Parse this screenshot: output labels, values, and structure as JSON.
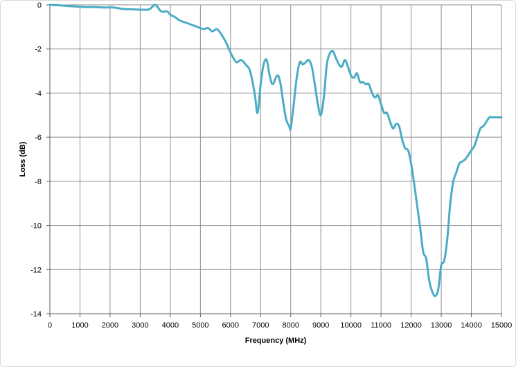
{
  "chart_data": {
    "type": "line",
    "title": "",
    "xlabel": "Frequency (MHz)",
    "ylabel": "Loss (dB)",
    "xlim": [
      0,
      15000
    ],
    "ylim": [
      -14,
      0
    ],
    "xticks": [
      0,
      1000,
      2000,
      3000,
      4000,
      5000,
      6000,
      7000,
      8000,
      9000,
      10000,
      11000,
      12000,
      13000,
      14000,
      15000
    ],
    "yticks": [
      0,
      -2,
      -4,
      -6,
      -8,
      -10,
      -12,
      -14
    ],
    "grid": true,
    "legend": "none",
    "colors": {
      "line": "#4bacc6",
      "grid": "#8c8c8c",
      "axis": "#595959"
    },
    "series": [
      {
        "x": [
          0,
          300,
          600,
          900,
          1200,
          1500,
          1800,
          2100,
          2400,
          2700,
          3000,
          3300,
          3500,
          3700,
          3900,
          4000,
          4150,
          4300,
          4500,
          4700,
          4900,
          5100,
          5250,
          5400,
          5550,
          5700,
          5850,
          5950,
          6050,
          6200,
          6350,
          6500,
          6650,
          6800,
          6900,
          7000,
          7100,
          7200,
          7300,
          7400,
          7550,
          7650,
          7750,
          7850,
          7950,
          8000,
          8100,
          8200,
          8300,
          8400,
          8500,
          8600,
          8700,
          8800,
          8900,
          9000,
          9100,
          9200,
          9300,
          9400,
          9500,
          9600,
          9700,
          9800,
          9900,
          10000,
          10100,
          10200,
          10300,
          10400,
          10500,
          10600,
          10700,
          10800,
          10900,
          11000,
          11100,
          11200,
          11300,
          11400,
          11500,
          11600,
          11700,
          11800,
          11900,
          12000,
          12100,
          12200,
          12300,
          12400,
          12500,
          12600,
          12700,
          12800,
          12900,
          13000,
          13100,
          13200,
          13300,
          13400,
          13500,
          13600,
          13700,
          13800,
          13900,
          14000,
          14100,
          14200,
          14300,
          14400,
          14500,
          14600,
          14700,
          14800,
          14900,
          15000
        ],
        "y": [
          0,
          -0.02,
          -0.05,
          -0.08,
          -0.1,
          -0.1,
          -0.12,
          -0.12,
          -0.18,
          -0.2,
          -0.22,
          -0.2,
          0,
          -0.3,
          -0.3,
          -0.45,
          -0.55,
          -0.7,
          -0.8,
          -0.9,
          -1.0,
          -1.1,
          -1.05,
          -1.2,
          -1.1,
          -1.35,
          -1.7,
          -2.0,
          -2.3,
          -2.6,
          -2.5,
          -2.7,
          -3.0,
          -4.0,
          -4.9,
          -3.6,
          -2.7,
          -2.5,
          -3.2,
          -3.6,
          -3.2,
          -3.5,
          -4.4,
          -5.2,
          -5.5,
          -5.6,
          -4.5,
          -3.3,
          -2.6,
          -2.7,
          -2.6,
          -2.5,
          -2.8,
          -3.6,
          -4.5,
          -5.0,
          -4.2,
          -2.7,
          -2.2,
          -2.1,
          -2.4,
          -2.7,
          -2.8,
          -2.5,
          -2.8,
          -3.2,
          -3.3,
          -3.1,
          -3.5,
          -3.5,
          -3.6,
          -3.6,
          -4.0,
          -4.2,
          -4.1,
          -4.5,
          -4.9,
          -4.9,
          -5.3,
          -5.6,
          -5.4,
          -5.5,
          -6.1,
          -6.5,
          -6.6,
          -7.2,
          -8.1,
          -9.1,
          -10.1,
          -11.2,
          -11.5,
          -12.5,
          -13.0,
          -13.2,
          -12.9,
          -11.8,
          -11.6,
          -10.6,
          -9.0,
          -8.0,
          -7.6,
          -7.2,
          -7.1,
          -7.0,
          -6.8,
          -6.6,
          -6.4,
          -6.0,
          -5.6,
          -5.5,
          -5.3,
          -5.1,
          -5.1,
          -5.1,
          -5.1,
          -5.1
        ]
      }
    ]
  }
}
